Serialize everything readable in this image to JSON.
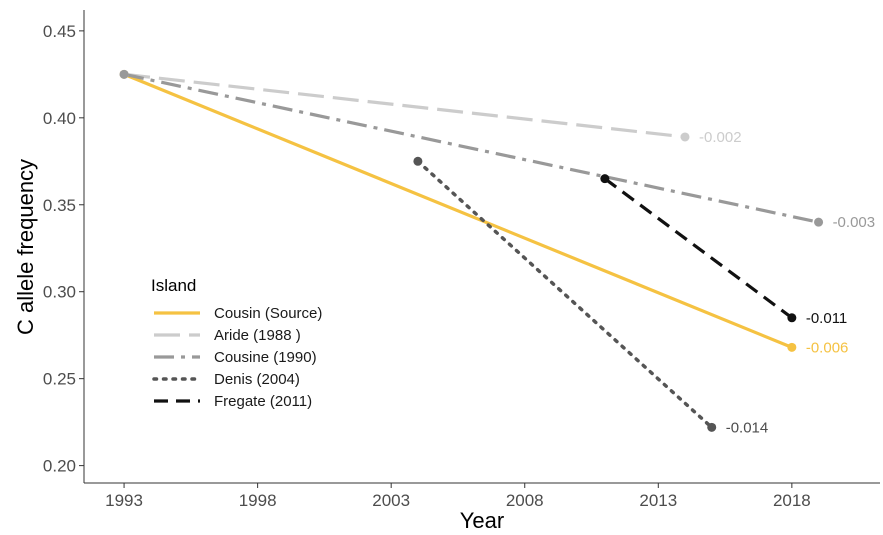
{
  "chart_data": {
    "type": "line",
    "title": "",
    "xlabel": "Year",
    "ylabel": "C allele frequency",
    "xlim": [
      1991.5,
      2021.3
    ],
    "ylim": [
      0.19,
      0.462
    ],
    "x_ticks": [
      1993,
      1998,
      2003,
      2008,
      2013,
      2018
    ],
    "y_ticks": [
      0.2,
      0.25,
      0.3,
      0.35,
      0.4,
      0.45
    ],
    "x_tick_labels": [
      "1993",
      "1998",
      "2003",
      "2008",
      "2013",
      "2018"
    ],
    "y_tick_labels": [
      "0.20",
      "0.25",
      "0.30",
      "0.35",
      "0.40",
      "0.45"
    ],
    "grid": false,
    "legend": {
      "title": "Island",
      "placement": "bottom-left"
    },
    "series": [
      {
        "name": "Cousin (Source)",
        "color": "#F5C242",
        "dash": "solid",
        "x": [
          1993,
          2018
        ],
        "y": [
          0.425,
          0.268
        ],
        "end_label": "-0.006",
        "end_label_color": "#F5C242"
      },
      {
        "name": "Aride (1988 )",
        "color": "#CCCCCC",
        "dash": "longdash",
        "x": [
          1993,
          2014
        ],
        "y": [
          0.425,
          0.389
        ],
        "end_label": "-0.002",
        "end_label_color": "#CCCCCC"
      },
      {
        "name": "Cousine (1990)",
        "color": "#999999",
        "dash": "dashdot",
        "x": [
          1993,
          2019
        ],
        "y": [
          0.425,
          0.34
        ],
        "end_label": "-0.003",
        "end_label_color": "#999999"
      },
      {
        "name": "Denis (2004)",
        "color": "#555555",
        "dash": "dotted",
        "x": [
          2004,
          2015
        ],
        "y": [
          0.375,
          0.222
        ],
        "end_label": "-0.014",
        "end_label_color": "#4d4d4d"
      },
      {
        "name": "Fregate (2011)",
        "color": "#111111",
        "dash": "dashed",
        "x": [
          2011,
          2018
        ],
        "y": [
          0.365,
          0.285
        ],
        "end_label": "-0.011",
        "end_label_color": "#111111"
      }
    ]
  }
}
